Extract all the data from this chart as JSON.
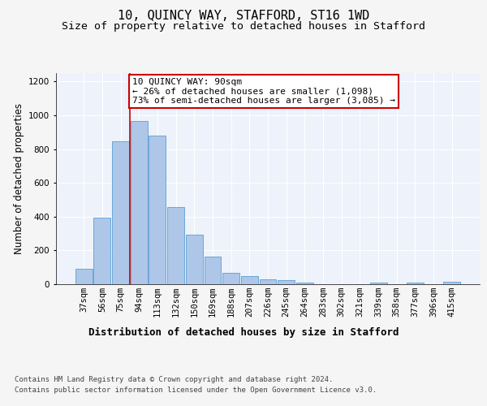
{
  "title": "10, QUINCY WAY, STAFFORD, ST16 1WD",
  "subtitle": "Size of property relative to detached houses in Stafford",
  "xlabel": "Distribution of detached houses by size in Stafford",
  "ylabel": "Number of detached properties",
  "categories": [
    "37sqm",
    "56sqm",
    "75sqm",
    "94sqm",
    "113sqm",
    "132sqm",
    "150sqm",
    "169sqm",
    "188sqm",
    "207sqm",
    "226sqm",
    "245sqm",
    "264sqm",
    "283sqm",
    "302sqm",
    "321sqm",
    "339sqm",
    "358sqm",
    "377sqm",
    "396sqm",
    "415sqm"
  ],
  "values": [
    90,
    395,
    848,
    965,
    878,
    458,
    292,
    162,
    68,
    50,
    30,
    22,
    8,
    0,
    0,
    0,
    10,
    0,
    10,
    0,
    15
  ],
  "bar_color": "#aec6e8",
  "bar_edge_color": "#5a9fd4",
  "background_color": "#eef2fa",
  "fig_background_color": "#f5f5f5",
  "grid_color": "#ffffff",
  "annotation_box_text": "10 QUINCY WAY: 90sqm\n← 26% of detached houses are smaller (1,098)\n73% of semi-detached houses are larger (3,085) →",
  "annotation_box_color": "#ffffff",
  "annotation_box_edgecolor": "#cc0000",
  "vline_x_index": 3,
  "vline_color": "#cc0000",
  "ylim": [
    0,
    1250
  ],
  "yticks": [
    0,
    200,
    400,
    600,
    800,
    1000,
    1200
  ],
  "footer_line1": "Contains HM Land Registry data © Crown copyright and database right 2024.",
  "footer_line2": "Contains public sector information licensed under the Open Government Licence v3.0.",
  "title_fontsize": 11,
  "subtitle_fontsize": 9.5,
  "ylabel_fontsize": 8.5,
  "xlabel_fontsize": 9,
  "tick_fontsize": 7.5,
  "annotation_fontsize": 8,
  "footer_fontsize": 6.5
}
